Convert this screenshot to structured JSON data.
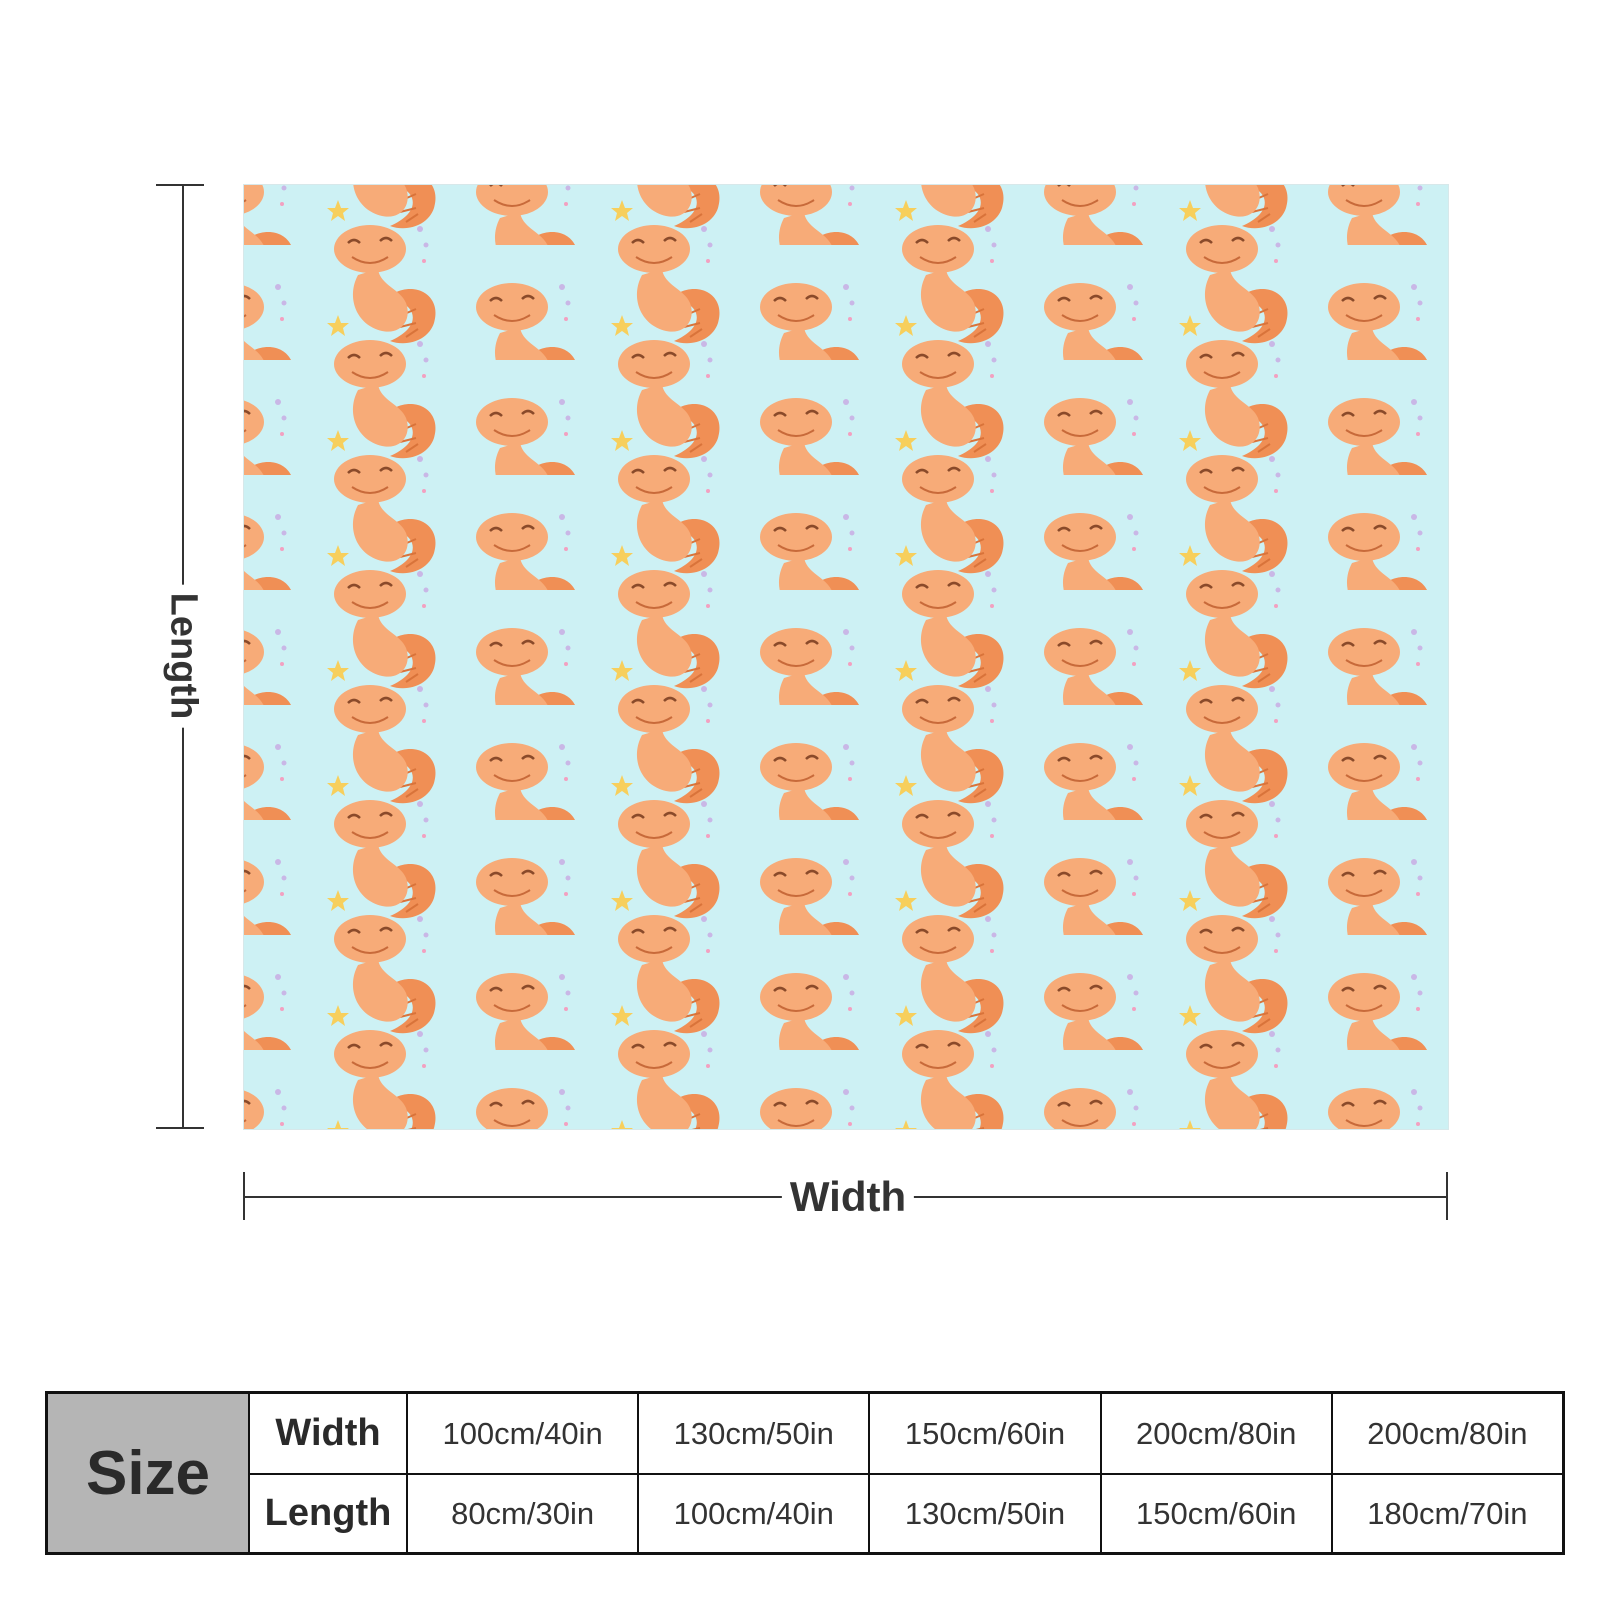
{
  "dimension_labels": {
    "length": "Length",
    "width": "Width"
  },
  "size_table": {
    "header": "Size",
    "width_label": "Width",
    "length_label": "Length",
    "widths": [
      "100cm/40in",
      "130cm/50in",
      "150cm/60in",
      "200cm/80in",
      "200cm/80in"
    ],
    "lengths": [
      "80cm/30in",
      "100cm/40in",
      "130cm/50in",
      "150cm/60in",
      "180cm/70in"
    ]
  },
  "colors": {
    "blanket_background": "#cdf1f4",
    "gecko_body": "#f7ab78",
    "gecko_tail": "#f08f55",
    "star_yellow": "#f7cf5c",
    "star_lavender": "#c9b7e6",
    "table_header_fill": "#b5b5b5"
  },
  "pattern_motif": "orange-gecko-with-stars"
}
